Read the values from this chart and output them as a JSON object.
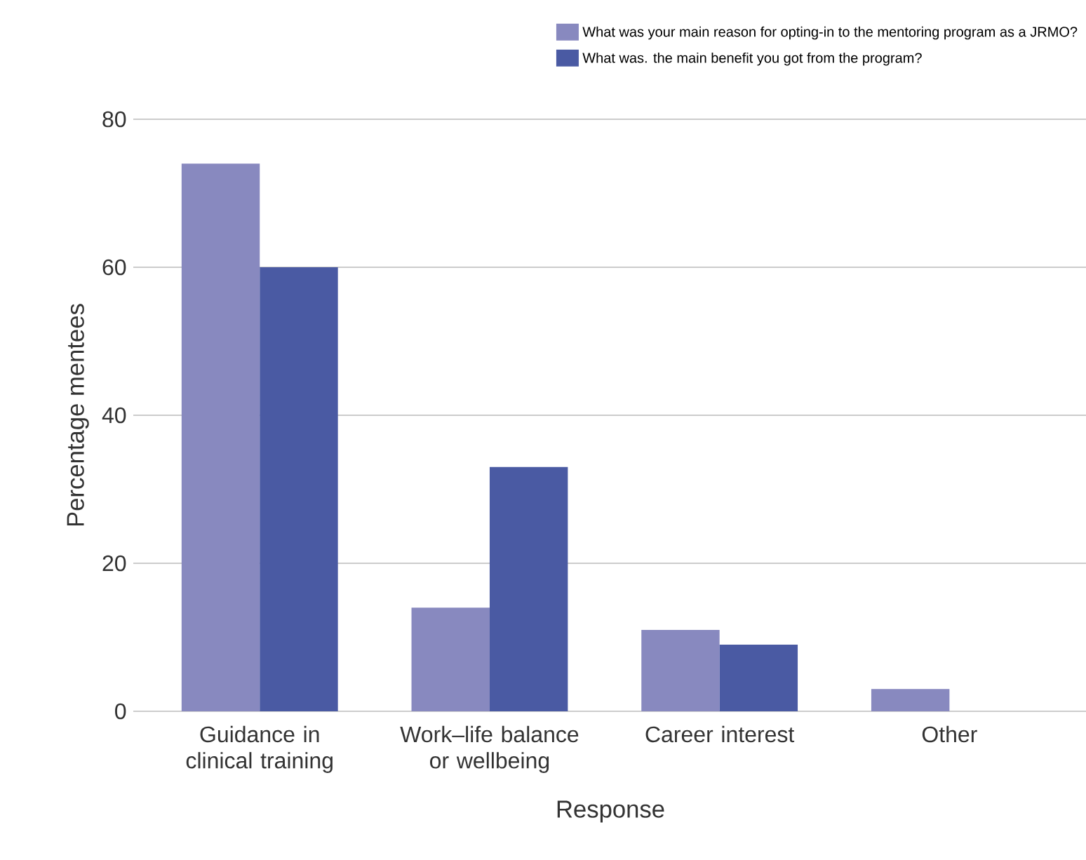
{
  "chart_data": {
    "type": "bar",
    "xlabel": "Response",
    "ylabel": "Percentage mentees",
    "categories": [
      "Guidance in clinical training",
      "Work–life balance or wellbeing",
      "Career interest",
      "Other"
    ],
    "series": [
      {
        "name": "What was your main reason for opting-in to the mentoring program as a JRMO?",
        "color": "#8889bf",
        "values": [
          74,
          14,
          11,
          3
        ]
      },
      {
        "name": "What was. the main benefit you got from the program?",
        "color": "#4a5aa3",
        "values": [
          60,
          33,
          9,
          null
        ]
      }
    ],
    "ylim": [
      0,
      80
    ],
    "yticks": [
      0,
      20,
      40,
      60,
      80
    ],
    "grid": "y",
    "legend": "top right"
  }
}
